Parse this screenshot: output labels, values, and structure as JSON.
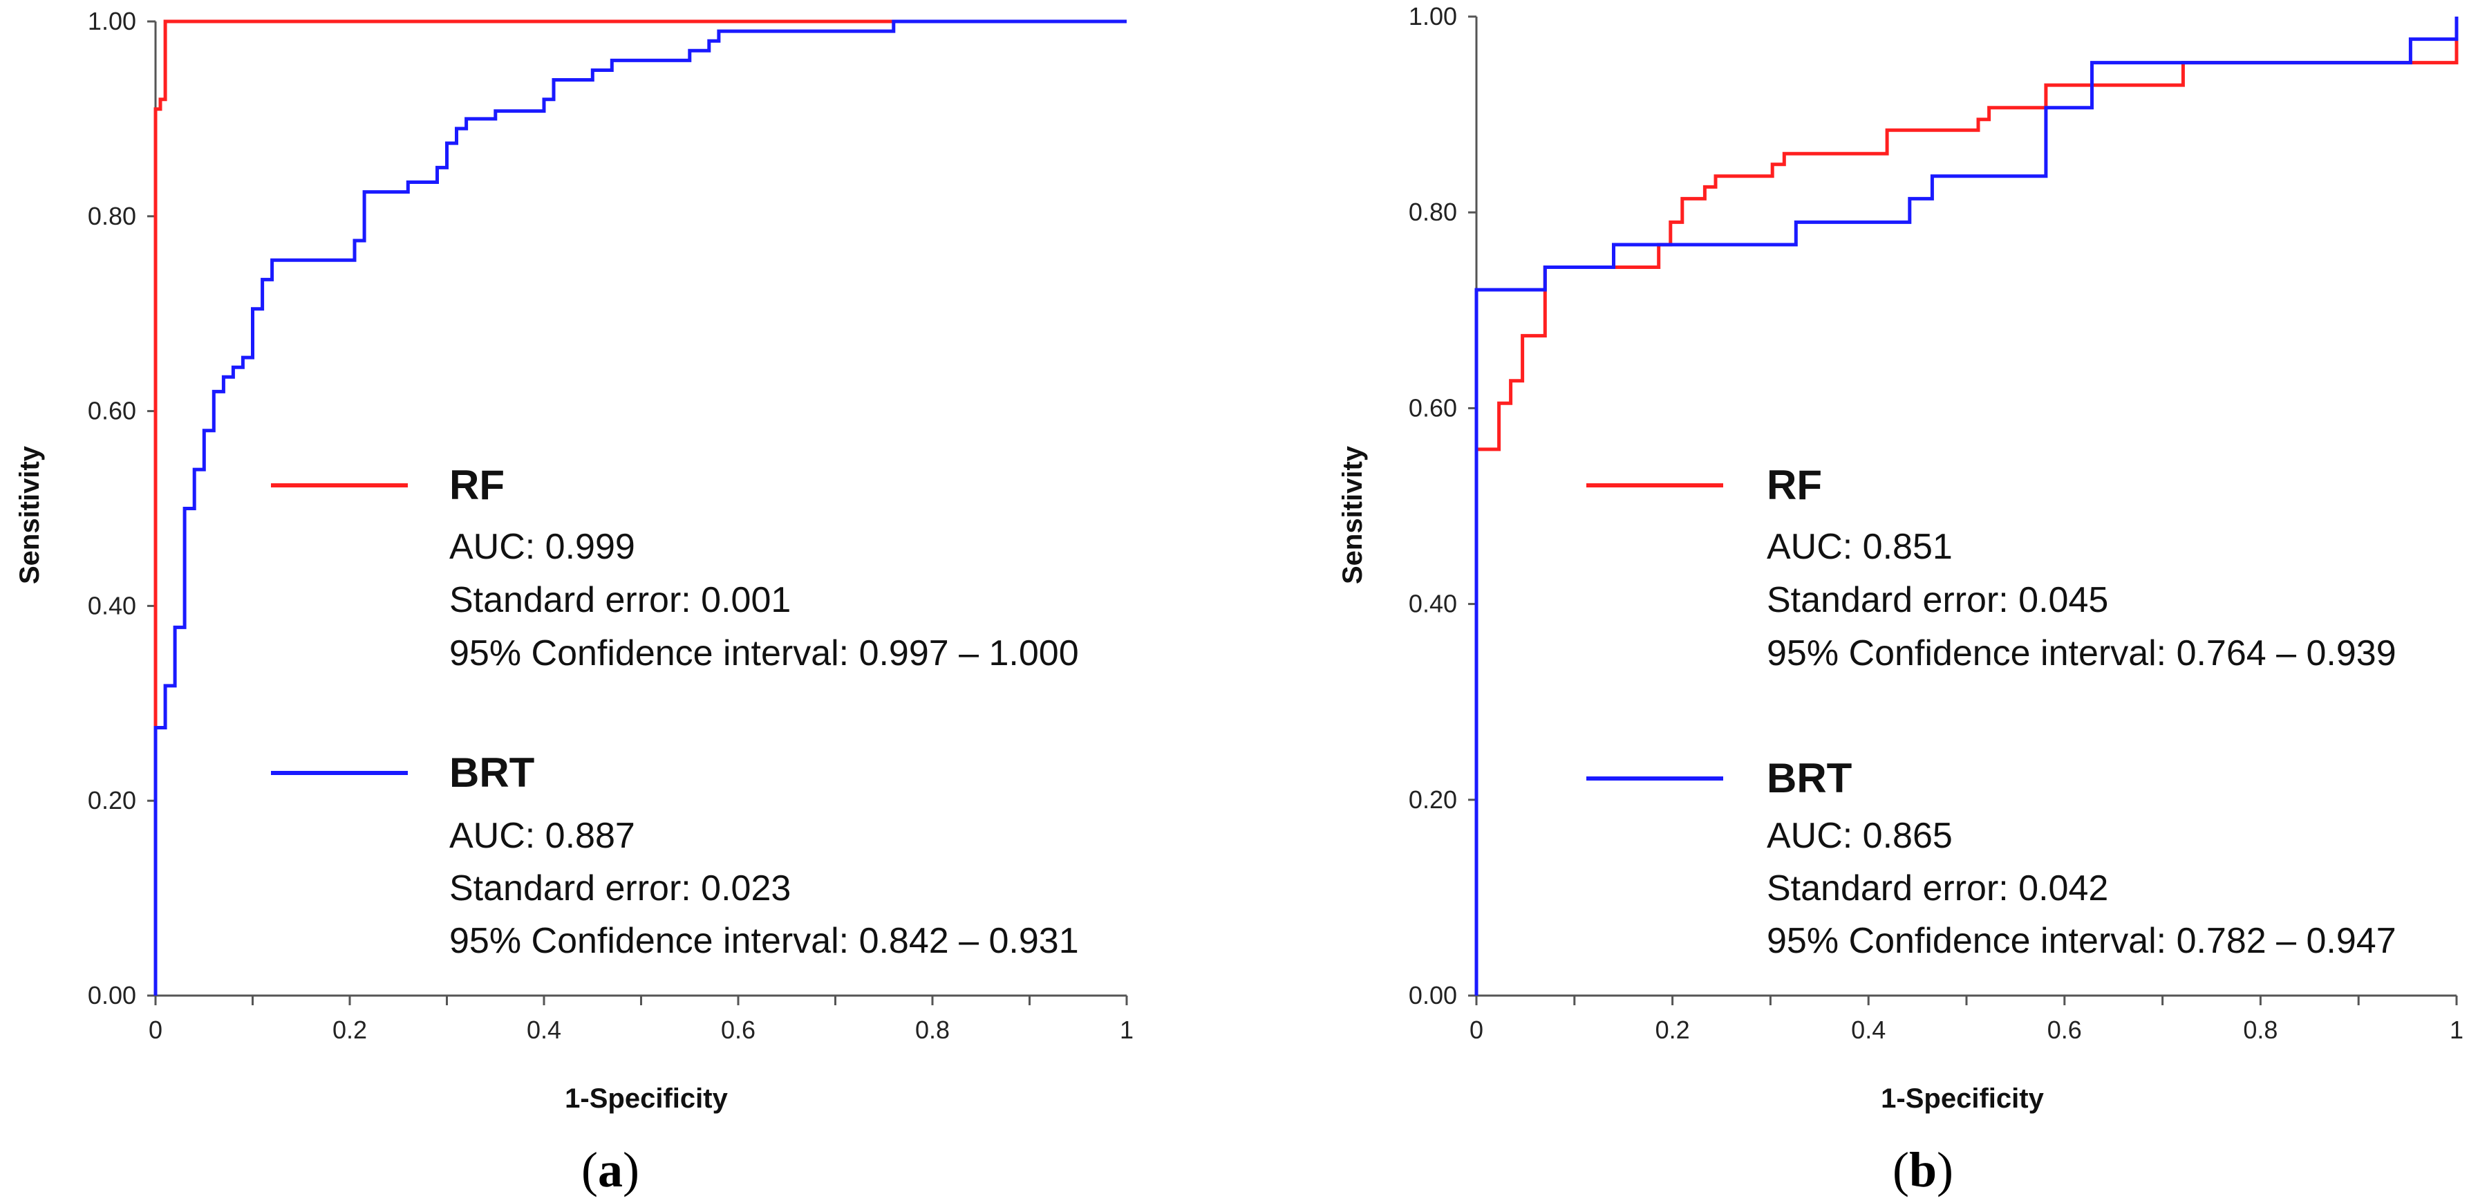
{
  "chart_data": [
    {
      "type": "line",
      "panel_label": "a",
      "xlabel": "1-Specificity",
      "ylabel": "Sensitivity",
      "xlim": [
        0,
        1
      ],
      "ylim": [
        0,
        1
      ],
      "x_ticks": [
        "0",
        "0.2",
        "0.4",
        "0.6",
        "0.8",
        "1"
      ],
      "y_ticks": [
        "0.00",
        "0.20",
        "0.40",
        "0.60",
        "0.80",
        "1.00"
      ],
      "legend_placement": "center-right",
      "series": [
        {
          "name": "RF",
          "color": "#ff2020",
          "auc": "AUC: 0.999",
          "std_error": "Standard error: 0.001",
          "ci": "95% Confidence interval: 0.997 – 1.000",
          "points": [
            [
              0,
              0
            ],
            [
              0,
              0.91
            ],
            [
              0.005,
              0.91
            ],
            [
              0.005,
              0.92
            ],
            [
              0.01,
              0.92
            ],
            [
              0.01,
              1.0
            ],
            [
              1,
              1.0
            ]
          ]
        },
        {
          "name": "BRT",
          "color": "#1a1aff",
          "auc": "AUC: 0.887",
          "std_error": "Standard error: 0.023",
          "ci": "95% Confidence interval: 0.842 – 0.931",
          "points": [
            [
              0,
              0
            ],
            [
              0,
              0.275
            ],
            [
              0.01,
              0.275
            ],
            [
              0.01,
              0.318
            ],
            [
              0.02,
              0.318
            ],
            [
              0.02,
              0.378
            ],
            [
              0.03,
              0.378
            ],
            [
              0.03,
              0.5
            ],
            [
              0.04,
              0.5
            ],
            [
              0.04,
              0.54
            ],
            [
              0.05,
              0.54
            ],
            [
              0.05,
              0.58
            ],
            [
              0.06,
              0.58
            ],
            [
              0.06,
              0.62
            ],
            [
              0.07,
              0.62
            ],
            [
              0.07,
              0.635
            ],
            [
              0.08,
              0.635
            ],
            [
              0.08,
              0.645
            ],
            [
              0.09,
              0.645
            ],
            [
              0.09,
              0.655
            ],
            [
              0.1,
              0.655
            ],
            [
              0.1,
              0.705
            ],
            [
              0.11,
              0.705
            ],
            [
              0.11,
              0.735
            ],
            [
              0.12,
              0.735
            ],
            [
              0.12,
              0.755
            ],
            [
              0.205,
              0.755
            ],
            [
              0.205,
              0.775
            ],
            [
              0.215,
              0.775
            ],
            [
              0.215,
              0.825
            ],
            [
              0.26,
              0.825
            ],
            [
              0.26,
              0.835
            ],
            [
              0.29,
              0.835
            ],
            [
              0.29,
              0.85
            ],
            [
              0.3,
              0.85
            ],
            [
              0.3,
              0.875
            ],
            [
              0.31,
              0.875
            ],
            [
              0.31,
              0.89
            ],
            [
              0.32,
              0.89
            ],
            [
              0.32,
              0.9
            ],
            [
              0.35,
              0.9
            ],
            [
              0.35,
              0.908
            ],
            [
              0.4,
              0.908
            ],
            [
              0.4,
              0.92
            ],
            [
              0.41,
              0.92
            ],
            [
              0.41,
              0.94
            ],
            [
              0.45,
              0.94
            ],
            [
              0.45,
              0.95
            ],
            [
              0.47,
              0.95
            ],
            [
              0.47,
              0.96
            ],
            [
              0.55,
              0.96
            ],
            [
              0.55,
              0.97
            ],
            [
              0.57,
              0.97
            ],
            [
              0.57,
              0.98
            ],
            [
              0.58,
              0.98
            ],
            [
              0.58,
              0.99
            ],
            [
              0.76,
              0.99
            ],
            [
              0.76,
              1.0
            ],
            [
              1,
              1.0
            ]
          ]
        }
      ]
    },
    {
      "type": "line",
      "panel_label": "b",
      "xlabel": "1-Specificity",
      "ylabel": "Sensitivity",
      "xlim": [
        0,
        1
      ],
      "ylim": [
        0,
        1
      ],
      "x_ticks": [
        "0",
        "0.2",
        "0.4",
        "0.6",
        "0.8",
        "1"
      ],
      "y_ticks": [
        "0.00",
        "0.20",
        "0.40",
        "0.60",
        "0.80",
        "1.00"
      ],
      "legend_placement": "center-right",
      "series": [
        {
          "name": "RF",
          "color": "#ff2020",
          "auc": "AUC: 0.851",
          "std_error": "Standard error: 0.045",
          "ci": "95% Confidence interval: 0.764 – 0.939",
          "points": [
            [
              0,
              0
            ],
            [
              0,
              0.558
            ],
            [
              0.023,
              0.558
            ],
            [
              0.023,
              0.605
            ],
            [
              0.035,
              0.605
            ],
            [
              0.035,
              0.628
            ],
            [
              0.047,
              0.628
            ],
            [
              0.047,
              0.674
            ],
            [
              0.07,
              0.674
            ],
            [
              0.07,
              0.744
            ],
            [
              0.186,
              0.744
            ],
            [
              0.186,
              0.767
            ],
            [
              0.198,
              0.767
            ],
            [
              0.198,
              0.79
            ],
            [
              0.21,
              0.79
            ],
            [
              0.21,
              0.814
            ],
            [
              0.233,
              0.814
            ],
            [
              0.233,
              0.826
            ],
            [
              0.244,
              0.826
            ],
            [
              0.244,
              0.837
            ],
            [
              0.302,
              0.837
            ],
            [
              0.302,
              0.849
            ],
            [
              0.314,
              0.849
            ],
            [
              0.314,
              0.86
            ],
            [
              0.419,
              0.86
            ],
            [
              0.419,
              0.884
            ],
            [
              0.512,
              0.884
            ],
            [
              0.512,
              0.895
            ],
            [
              0.523,
              0.895
            ],
            [
              0.523,
              0.907
            ],
            [
              0.581,
              0.907
            ],
            [
              0.581,
              0.93
            ],
            [
              0.721,
              0.93
            ],
            [
              0.721,
              0.953
            ],
            [
              1,
              0.953
            ],
            [
              1,
              1.0
            ]
          ]
        },
        {
          "name": "BRT",
          "color": "#1a1aff",
          "auc": "AUC: 0.865",
          "std_error": "Standard error: 0.042",
          "ci": "95% Confidence interval: 0.782 – 0.947",
          "points": [
            [
              0,
              0
            ],
            [
              0,
              0.721
            ],
            [
              0.07,
              0.721
            ],
            [
              0.07,
              0.744
            ],
            [
              0.14,
              0.744
            ],
            [
              0.14,
              0.767
            ],
            [
              0.326,
              0.767
            ],
            [
              0.326,
              0.79
            ],
            [
              0.442,
              0.79
            ],
            [
              0.442,
              0.814
            ],
            [
              0.465,
              0.814
            ],
            [
              0.465,
              0.837
            ],
            [
              0.581,
              0.837
            ],
            [
              0.581,
              0.907
            ],
            [
              0.628,
              0.907
            ],
            [
              0.628,
              0.953
            ],
            [
              0.953,
              0.953
            ],
            [
              0.953,
              0.977
            ],
            [
              1,
              0.977
            ],
            [
              1,
              1.0
            ]
          ]
        }
      ]
    }
  ]
}
